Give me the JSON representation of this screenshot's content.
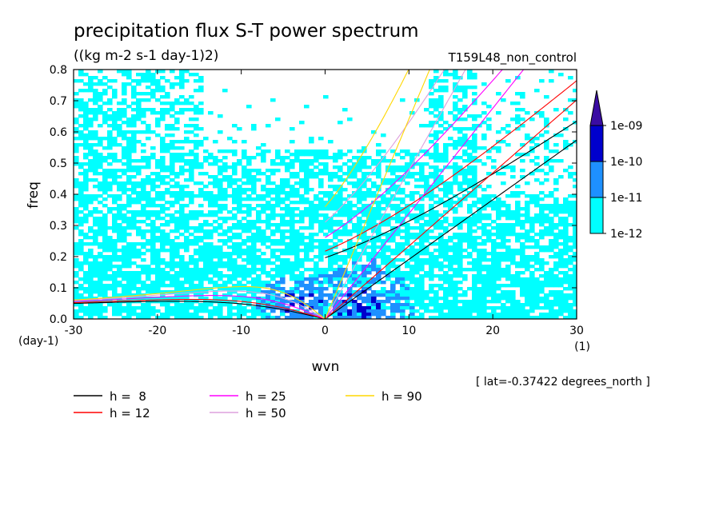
{
  "chart_data": {
    "type": "heatmap",
    "title": "precipitation flux S-T power spectrum",
    "units": "((kg m-2 s-1 day-1)2)",
    "run_label": "T159L48_non_control",
    "xlabel": "wvn",
    "ylabel": "freq",
    "x_unit": "(1)",
    "y_unit": "(day-1)",
    "xlim": [
      -30,
      30
    ],
    "ylim": [
      0,
      0.8
    ],
    "x_ticks": [
      -30,
      -20,
      -10,
      0,
      10,
      20,
      30
    ],
    "x_tick_labels": [
      "-30",
      "-20",
      "-10",
      "0",
      "10",
      "20",
      "30"
    ],
    "y_ticks": [
      0,
      0.1,
      0.2,
      0.3,
      0.4,
      0.5,
      0.6,
      0.7,
      0.8
    ],
    "y_tick_labels": [
      "0.0",
      "0.1",
      "0.2",
      "0.3",
      "0.4",
      "0.5",
      "0.6",
      "0.7",
      "0.8"
    ],
    "latitude_note": "[ lat=-0.37422 degrees_north ]",
    "colorbar": {
      "levels": [
        "1e-12",
        "1e-11",
        "1e-10",
        "1e-09"
      ],
      "colors": [
        "#00ffff",
        "#1e90ff",
        "#0000cd",
        "#3a0ca3"
      ]
    },
    "dispersion_curves": [
      {
        "label": "h =  8",
        "h": 8,
        "color": "#000000"
      },
      {
        "label": "h = 12",
        "h": 12,
        "color": "#ff0000"
      },
      {
        "label": "h = 25",
        "h": 25,
        "color": "#ff00ff"
      },
      {
        "label": "h = 50",
        "h": 50,
        "color": "#dda0dd"
      },
      {
        "label": "h = 90",
        "h": 90,
        "color": "#ffd700"
      }
    ]
  }
}
